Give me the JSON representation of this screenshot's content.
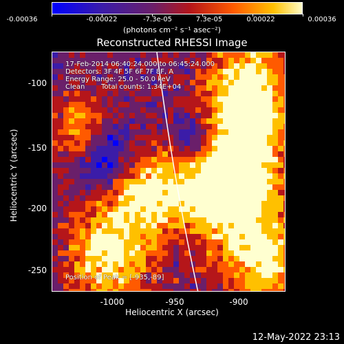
{
  "colorbar": {
    "ticks": [
      "-0.00036",
      "-0.00022",
      "-7.3e-05",
      "7.3e-05",
      "0.00022",
      "0.00036"
    ],
    "unit": "(photons cm⁻² s⁻¹ asec⁻²)",
    "colors": [
      "#0000ff",
      "#3b1ca8",
      "#6a1f6a",
      "#b5161a",
      "#ff5a00",
      "#ffc000",
      "#ffffd0"
    ]
  },
  "title": "Reconstructed RHESSI Image",
  "info": {
    "time": "17-Feb-2014 06:40:24.000 to 06:45:24.000",
    "detectors": "Detectors: 3F 4F 5F 6F 7F 8F, A",
    "energy": "Energy Range: 25.0 - 50.0 keV",
    "clean_label": "Clean",
    "total_counts": "Total counts: 1.34E+04",
    "peak": "Position of Peak = [-935,-89]"
  },
  "axes": {
    "xlabel": "Heliocentric X (arcsec)",
    "ylabel": "Heliocentric Y (arcsec)",
    "xticks": [
      "-1000",
      "-950",
      "-900"
    ],
    "yticks": [
      "-100",
      "-150",
      "-200",
      "-250"
    ]
  },
  "timestamp": "12-May-2022 23:13"
}
